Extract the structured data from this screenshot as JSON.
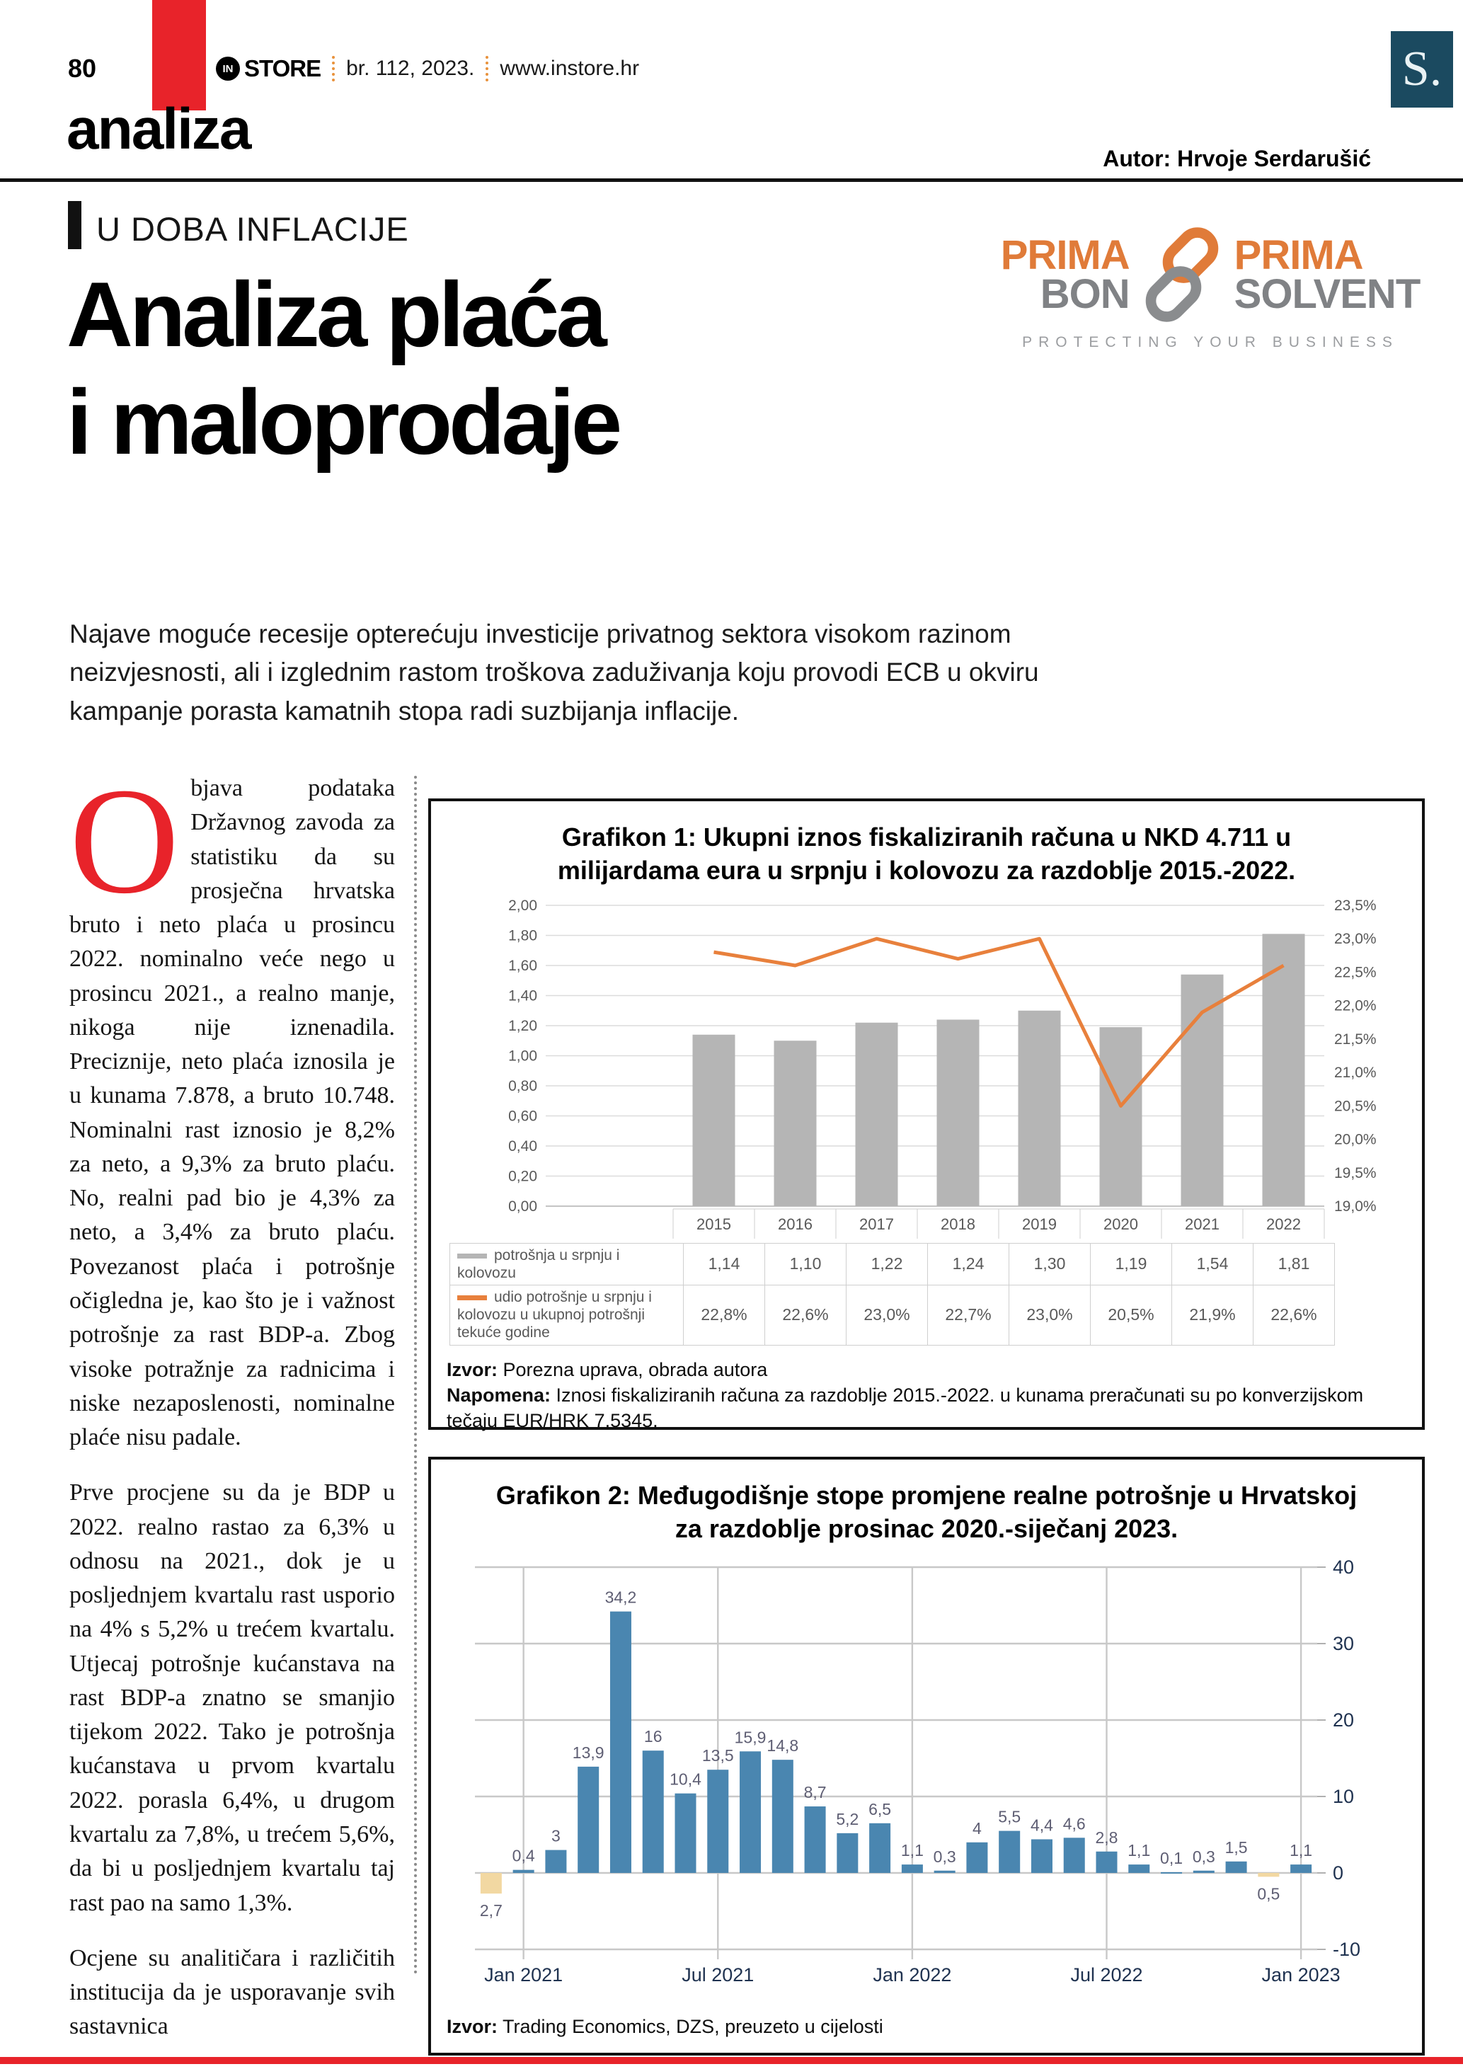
{
  "header": {
    "page_number": "80",
    "brand_in": "IN",
    "brand_store": "STORE",
    "issue": "br. 112, 2023.",
    "website": "www.instore.hr",
    "section": "analiza",
    "author": "Autor: Hrvoje Serdarušić",
    "publisher_initial": "S."
  },
  "kicker": "U DOBA INFLACIJE",
  "title": {
    "line1": "Analiza plaća",
    "line2": "i maloprodaje"
  },
  "lead": "Najave moguće recesije opterećuju investicije privatnog sektora visokom razinom neizvjesnosti, ali i izglednim rastom troškova zaduživanja koju provodi ECB u okviru kampanje porasta kamatnih stopa radi suzbijanja inflacije.",
  "sponsor": {
    "prima_left": "PRIMA",
    "bon": "BON",
    "prima_right": "PRIMA",
    "solvent": "SOLVENT",
    "tagline": "PROTECTING YOUR BUSINESS",
    "orange": "#e07b39",
    "gray": "#808285"
  },
  "article": {
    "dropcap": "O",
    "paragraph1": "bjava podataka Državnog zavoda za statistiku da su prosječna hrvatska bruto i neto plaća u prosincu 2022. nominalno veće nego u prosincu 2021., a realno manje, nikoga nije iznenadila. Preciznije, neto plaća iznosila je u kunama 7.878, a bruto 10.748. Nominalni rast iznosio je 8,2% za neto, a 9,3% za bruto plaću. No, realni pad bio je 4,3% za neto, a 3,4% za bruto plaću. Povezanost plaća i potrošnje očigledna je, kao što je i važnost potrošnje za rast BDP-a. Zbog visoke potražnje za radnicima i niske nezaposlenosti, nominalne plaće nisu padale.",
    "paragraph2": "Prve procjene su da je BDP u 2022. realno rastao za 6,3% u odnosu na 2021., dok je u posljednjem kvartalu rast usporio na 4% s 5,2% u trećem kvartalu. Utjecaj potrošnje kućanstava na rast BDP-a znatno se smanjio tijekom 2022. Tako je potrošnja kućanstava u prvom kvartalu 2022. porasla 6,4%, u drugom kvartalu za 7,8%, u trećem 5,6%, da bi u posljednjem kvartalu taj rast pao na samo 1,3%.",
    "paragraph3": "Ocjene su analitičara i različitih institucija da je usporavanje svih sastavnica"
  },
  "chart_data": [
    {
      "type": "combo-bar-line",
      "title": "Grafikon 1: Ukupni iznos fiskaliziranih računa u NKD 4.711 u milijardama eura u srpnju i kolovozu za razdoblje 2015.-2022.",
      "categories": [
        "2015",
        "2016",
        "2017",
        "2018",
        "2019",
        "2020",
        "2021",
        "2022"
      ],
      "series": [
        {
          "name": "potrošnja u srpnju i kolovozu",
          "type": "bar",
          "color": "#b5b5b5",
          "values": [
            1.14,
            1.1,
            1.22,
            1.24,
            1.3,
            1.19,
            1.54,
            1.81
          ],
          "labels": [
            "1,14",
            "1,10",
            "1,22",
            "1,24",
            "1,30",
            "1,19",
            "1,54",
            "1,81"
          ]
        },
        {
          "name": "udio potrošnje u srpnju i kolovozu u ukupnoj potrošnji tekuće godine",
          "type": "line",
          "color": "#e8803c",
          "values": [
            22.8,
            22.6,
            23.0,
            22.7,
            23.0,
            20.5,
            21.9,
            22.6
          ],
          "labels": [
            "22,8%",
            "22,6%",
            "23,0%",
            "22,7%",
            "23,0%",
            "20,5%",
            "21,9%",
            "22,6%"
          ]
        }
      ],
      "y_left": {
        "min": 0,
        "max": 2,
        "step": 0.2,
        "labels": [
          "2,00",
          "1,80",
          "1,60",
          "1,40",
          "1,20",
          "1,00",
          "0,80",
          "0,60",
          "0,40",
          "0,20",
          "0,00"
        ]
      },
      "y_right": {
        "min": 19,
        "max": 23.5,
        "step": 0.5,
        "labels": [
          "23,5%",
          "23,0%",
          "22,5%",
          "22,0%",
          "21,5%",
          "21,0%",
          "20,5%",
          "20,0%",
          "19,5%",
          "19,0%"
        ]
      },
      "grid": true,
      "legend_position": "bottom-table",
      "izvor_label": "Izvor:",
      "izvor": " Porezna uprava, obrada autora",
      "napomena_label": "Napomena:",
      "napomena": " Iznosi fiskaliziranih računa za razdoblje 2015.-2022. u kunama preračunati su po konverzijskom tečaju EUR/HRK 7,5345."
    },
    {
      "type": "bar",
      "title": "Grafikon 2: Međugodišnje stope promjene realne potrošnje u Hrvatskoj za razdoblje prosinac 2020.-siječanj 2023.",
      "values": [
        -2.7,
        0.4,
        3,
        13.9,
        34.2,
        16,
        10.4,
        13.5,
        15.9,
        14.8,
        8.7,
        5.2,
        6.5,
        1.1,
        0.3,
        4,
        5.5,
        4.4,
        4.6,
        2.8,
        1.1,
        0.1,
        0.3,
        1.5,
        -0.5,
        1.1
      ],
      "labels": [
        "2,7",
        "0,4",
        "3",
        "13,9",
        "34,2",
        "16",
        "10,4",
        "13,5",
        "15,9",
        "14,8",
        "8,7",
        "5,2",
        "6,5",
        "1,1",
        "0,3",
        "4",
        "5,5",
        "4,4",
        "4,6",
        "2,8",
        "1,1",
        "0,1",
        "0,3",
        "1,5",
        "0,5",
        "1,1"
      ],
      "x_ticks": [
        {
          "index": 1,
          "label": "Jan 2021"
        },
        {
          "index": 7,
          "label": "Jul 2021"
        },
        {
          "index": 13,
          "label": "Jan 2022"
        },
        {
          "index": 19,
          "label": "Jul 2022"
        },
        {
          "index": 25,
          "label": "Jan 2023"
        }
      ],
      "ylim": [
        -10,
        40
      ],
      "y_step": 10,
      "y_labels": [
        "40",
        "30",
        "20",
        "10",
        "0",
        "-10"
      ],
      "grid": true,
      "bar_color": "#4a86b0",
      "negative_color": "#f2d8a2",
      "label_color": "#5e5e73",
      "axis_color": "#1f3250",
      "izvor_label": "Izvor:",
      "izvor": " Trading Economics, DZS, preuzeto u cijelosti"
    }
  ]
}
